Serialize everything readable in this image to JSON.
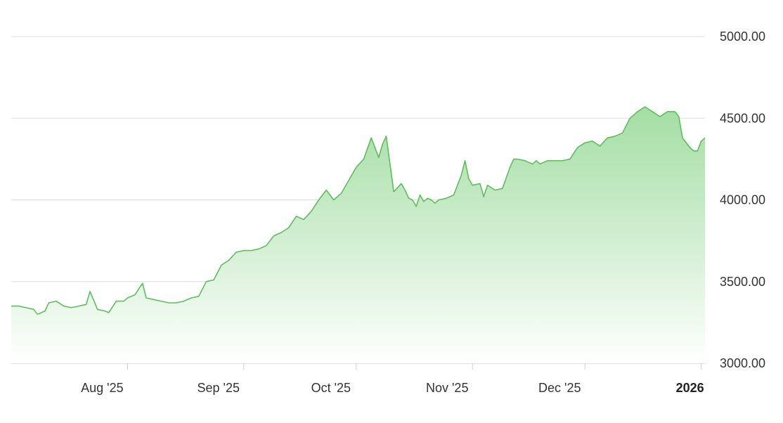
{
  "chart_data": {
    "type": "area",
    "title": "",
    "xlabel": "",
    "ylabel": "",
    "x_range": [
      "2025-07-01",
      "2026-01-02"
    ],
    "ylim": [
      3000,
      5000
    ],
    "y_ticks": [
      {
        "value": 3000,
        "label": "3000.00"
      },
      {
        "value": 3500,
        "label": "3500.00"
      },
      {
        "value": 4000,
        "label": "4000.00"
      },
      {
        "value": 4500,
        "label": "4500.00"
      },
      {
        "value": 5000,
        "label": "5000.00"
      }
    ],
    "x_ticks": [
      {
        "date": "2025-08-01",
        "label": "Aug '25",
        "bold": false
      },
      {
        "date": "2025-09-01",
        "label": "Sep '25",
        "bold": false
      },
      {
        "date": "2025-10-01",
        "label": "Oct '25",
        "bold": false
      },
      {
        "date": "2025-11-01",
        "label": "Nov '25",
        "bold": false
      },
      {
        "date": "2025-12-01",
        "label": "Dec '25",
        "bold": false
      },
      {
        "date": "2026-01-01",
        "label": "2026",
        "bold": true
      }
    ],
    "grid": true,
    "colors": {
      "line": "#5cbf5c",
      "fill_top": "#9fdc9f",
      "fill_bottom": "#ffffff",
      "grid": "#dcdcdc"
    },
    "series": [
      {
        "x": [
          "2025-07-01",
          "2025-07-03",
          "2025-07-05",
          "2025-07-07",
          "2025-07-08",
          "2025-07-10",
          "2025-07-11",
          "2025-07-13",
          "2025-07-15",
          "2025-07-17",
          "2025-07-19",
          "2025-07-21",
          "2025-07-22",
          "2025-07-24",
          "2025-07-26",
          "2025-07-27",
          "2025-07-29",
          "2025-07-31",
          "2025-08-01",
          "2025-08-03",
          "2025-08-05",
          "2025-08-06",
          "2025-08-08",
          "2025-08-10",
          "2025-08-12",
          "2025-08-14",
          "2025-08-16",
          "2025-08-18",
          "2025-08-20",
          "2025-08-22",
          "2025-08-24",
          "2025-08-26",
          "2025-08-28",
          "2025-08-30",
          "2025-09-01",
          "2025-09-03",
          "2025-09-05",
          "2025-09-07",
          "2025-09-09",
          "2025-09-11",
          "2025-09-13",
          "2025-09-15",
          "2025-09-17",
          "2025-09-19",
          "2025-09-21",
          "2025-09-23",
          "2025-09-25",
          "2025-09-27",
          "2025-09-29",
          "2025-10-01",
          "2025-10-03",
          "2025-10-05",
          "2025-10-07",
          "2025-10-08",
          "2025-10-09",
          "2025-10-11",
          "2025-10-13",
          "2025-10-14",
          "2025-10-15",
          "2025-10-16",
          "2025-10-17",
          "2025-10-18",
          "2025-10-19",
          "2025-10-20",
          "2025-10-21",
          "2025-10-22",
          "2025-10-23",
          "2025-10-25",
          "2025-10-27",
          "2025-10-29",
          "2025-10-30",
          "2025-10-31",
          "2025-11-01",
          "2025-11-03",
          "2025-11-04",
          "2025-11-05",
          "2025-11-07",
          "2025-11-09",
          "2025-11-11",
          "2025-11-12",
          "2025-11-13",
          "2025-11-15",
          "2025-11-17",
          "2025-11-18",
          "2025-11-19",
          "2025-11-21",
          "2025-11-23",
          "2025-11-25",
          "2025-11-27",
          "2025-11-29",
          "2025-12-01",
          "2025-12-03",
          "2025-12-05",
          "2025-12-07",
          "2025-12-09",
          "2025-12-11",
          "2025-12-13",
          "2025-12-15",
          "2025-12-17",
          "2025-12-19",
          "2025-12-21",
          "2025-12-23",
          "2025-12-25",
          "2025-12-26",
          "2025-12-27",
          "2025-12-28",
          "2025-12-29",
          "2025-12-30",
          "2025-12-31",
          "2026-01-01",
          "2026-01-02"
        ],
        "y": [
          3350,
          3350,
          3340,
          3330,
          3300,
          3320,
          3370,
          3380,
          3350,
          3340,
          3350,
          3360,
          3440,
          3330,
          3320,
          3310,
          3380,
          3380,
          3400,
          3420,
          3490,
          3400,
          3390,
          3380,
          3370,
          3370,
          3380,
          3400,
          3410,
          3500,
          3510,
          3600,
          3630,
          3680,
          3690,
          3690,
          3700,
          3720,
          3780,
          3800,
          3830,
          3900,
          3880,
          3930,
          4000,
          4060,
          4000,
          4040,
          4120,
          4200,
          4250,
          4380,
          4260,
          4340,
          4390,
          4050,
          4100,
          4060,
          4010,
          4000,
          3960,
          4030,
          3990,
          4010,
          4000,
          3980,
          4000,
          4010,
          4030,
          4150,
          4240,
          4130,
          4090,
          4100,
          4020,
          4090,
          4060,
          4070,
          4200,
          4250,
          4250,
          4240,
          4220,
          4240,
          4220,
          4240,
          4240,
          4240,
          4250,
          4320,
          4350,
          4360,
          4330,
          4380,
          4390,
          4410,
          4500,
          4540,
          4570,
          4540,
          4510,
          4540,
          4540,
          4510,
          4380,
          4350,
          4320,
          4300,
          4300,
          4360,
          4380
        ]
      }
    ]
  }
}
